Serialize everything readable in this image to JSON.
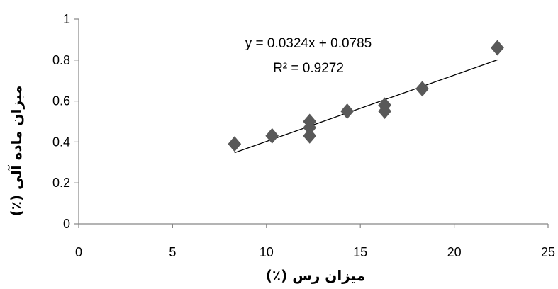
{
  "chart_data": {
    "type": "scatter",
    "xlabel": "میزان رس (٪)",
    "ylabel": "میزان ماده آلی (٪)",
    "xlim": [
      0,
      25
    ],
    "ylim": [
      0,
      1
    ],
    "x_ticks": [
      "0",
      "5",
      "10",
      "15",
      "20",
      "25"
    ],
    "y_ticks": [
      "0",
      "0.2",
      "0.4",
      "0.6",
      "0.8",
      "1"
    ],
    "grid": false,
    "legend": "none",
    "marker": "diamond",
    "marker_color": "#595959",
    "trendline_color": "#000000",
    "points": [
      {
        "x": 8.3,
        "y": 0.39
      },
      {
        "x": 10.3,
        "y": 0.43
      },
      {
        "x": 12.3,
        "y": 0.5
      },
      {
        "x": 12.3,
        "y": 0.47
      },
      {
        "x": 12.3,
        "y": 0.43
      },
      {
        "x": 14.3,
        "y": 0.55
      },
      {
        "x": 16.3,
        "y": 0.58
      },
      {
        "x": 16.3,
        "y": 0.55
      },
      {
        "x": 18.3,
        "y": 0.66
      },
      {
        "x": 22.3,
        "y": 0.86
      }
    ],
    "trendline": {
      "slope": 0.0324,
      "intercept": 0.0785,
      "x_range": [
        8.3,
        22.3
      ]
    },
    "annotations": {
      "equation": "y = 0.0324x + 0.0785",
      "r_squared": "R² = 0.9272"
    }
  }
}
